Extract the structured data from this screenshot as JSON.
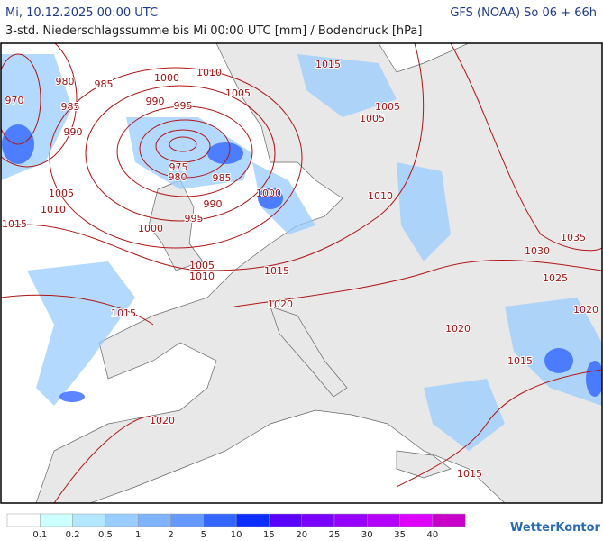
{
  "header": {
    "date": "Mi, 10.12.2025 00:00 UTC",
    "model": "GFS (NOAA) So 06 + 66h",
    "subtitle": "3-std. Niederschlagssumme bis Mi 00:00 UTC [mm] / Bodendruck [hPa]"
  },
  "isobar_labels": [
    "970",
    "980",
    "985",
    "1000",
    "1010",
    "1015",
    "1005",
    "990",
    "995",
    "985",
    "990",
    "975",
    "980",
    "985",
    "990",
    "995",
    "1000",
    "1005",
    "1010",
    "1015",
    "1000",
    "1005",
    "1010",
    "1015",
    "1020",
    "1015",
    "1020",
    "1005",
    "1005",
    "1010",
    "1030",
    "1035",
    "1025",
    "1020",
    "1020",
    "1015",
    "1015"
  ],
  "legend": {
    "colors": [
      "#ffffff",
      "#ccffff",
      "#b3e6ff",
      "#99ccff",
      "#80b3ff",
      "#6699ff",
      "#3366ff",
      "#0a2eff",
      "#5a00ff",
      "#7a00ff",
      "#9600ff",
      "#b400ff",
      "#e000ff",
      "#c800c8"
    ],
    "labels": [
      "0.1",
      "0.2",
      "0.5",
      "1",
      "2",
      "5",
      "10",
      "15",
      "20",
      "25",
      "30",
      "35",
      "40"
    ]
  },
  "brand": "WetterKontor"
}
